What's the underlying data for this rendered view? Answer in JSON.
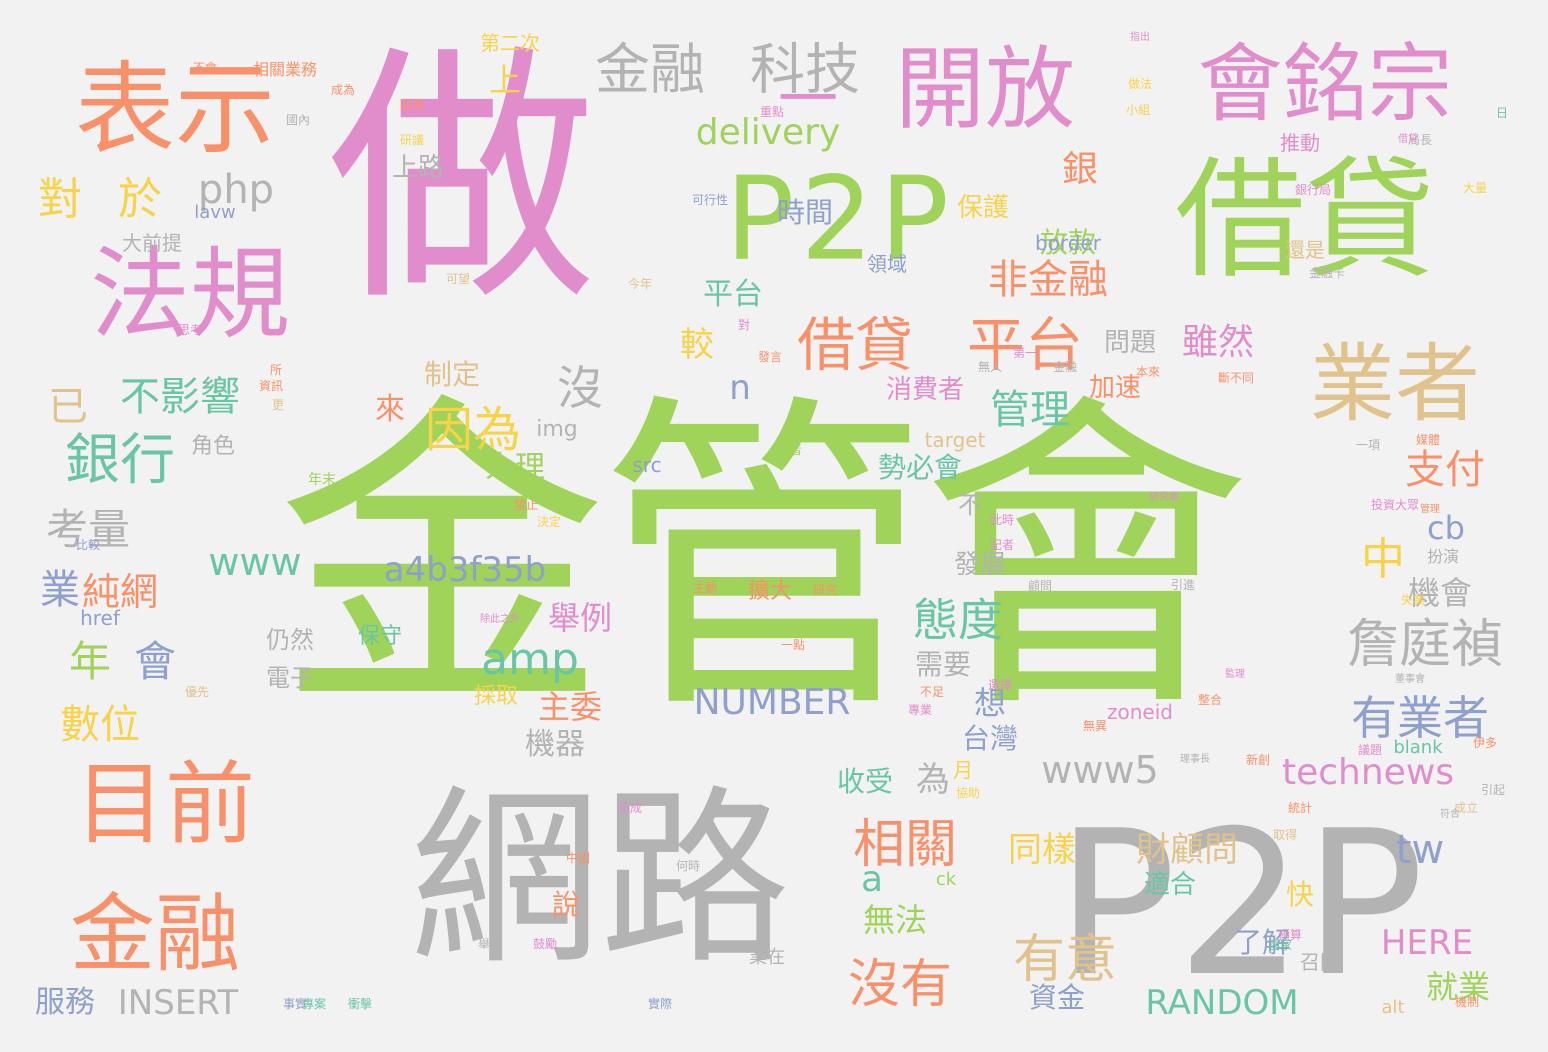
{
  "palette": {
    "green": "#9fd359",
    "pink": "#e18dcb",
    "orange": "#f8916a",
    "gray": "#b3b3b3",
    "tan": "#e0c38c",
    "teal": "#69c6a4",
    "blue": "#8ea0cb",
    "yellow": "#f7d34a",
    "background": "#f2f2f2"
  },
  "words": [
    {
      "text": "金管會",
      "color": "green"
    },
    {
      "text": "做",
      "color": "pink"
    },
    {
      "text": "網路",
      "color": "gray"
    },
    {
      "text": "P2P",
      "color": "gray"
    },
    {
      "text": "P2P",
      "color": "green"
    },
    {
      "text": "借貸",
      "color": "green"
    },
    {
      "text": "表示",
      "color": "orange"
    },
    {
      "text": "法規",
      "color": "pink"
    },
    {
      "text": "開放",
      "color": "pink"
    },
    {
      "text": "會銘宗",
      "color": "pink"
    },
    {
      "text": "業者",
      "color": "tan"
    },
    {
      "text": "目前",
      "color": "orange"
    },
    {
      "text": "金融",
      "color": "orange"
    },
    {
      "text": "借貸",
      "color": "orange"
    },
    {
      "text": "平台",
      "color": "orange"
    },
    {
      "text": "金融",
      "color": "gray"
    },
    {
      "text": "科技",
      "color": "gray"
    },
    {
      "text": "一",
      "color": "pink"
    },
    {
      "text": "delivery",
      "color": "green"
    },
    {
      "text": "對",
      "color": "yellow"
    },
    {
      "text": "於",
      "color": "yellow"
    },
    {
      "text": "php",
      "color": "gray"
    },
    {
      "text": "銀行",
      "color": "teal"
    },
    {
      "text": "不影響",
      "color": "teal"
    },
    {
      "text": "已",
      "color": "tan"
    },
    {
      "text": "因為",
      "color": "yellow"
    },
    {
      "text": "沒",
      "color": "gray"
    },
    {
      "text": "非金融",
      "color": "orange"
    },
    {
      "text": "雖然",
      "color": "pink"
    },
    {
      "text": "管理",
      "color": "teal"
    },
    {
      "text": "詹庭禎",
      "color": "gray"
    },
    {
      "text": "有業者",
      "color": "blue"
    },
    {
      "text": "支付",
      "color": "orange"
    },
    {
      "text": "態度",
      "color": "teal"
    },
    {
      "text": "amp",
      "color": "teal"
    },
    {
      "text": "a4b3f35b",
      "color": "blue"
    },
    {
      "text": "www",
      "color": "teal"
    },
    {
      "text": "考量",
      "color": "gray"
    },
    {
      "text": "業",
      "color": "blue"
    },
    {
      "text": "純網",
      "color": "orange"
    },
    {
      "text": "年",
      "color": "green"
    },
    {
      "text": "會",
      "color": "blue"
    },
    {
      "text": "數位",
      "color": "yellow"
    },
    {
      "text": "相關",
      "color": "orange"
    },
    {
      "text": "有意",
      "color": "tan"
    },
    {
      "text": "沒有",
      "color": "orange"
    },
    {
      "text": "www5",
      "color": "gray"
    },
    {
      "text": "technews",
      "color": "pink"
    },
    {
      "text": "NUMBER",
      "color": "blue"
    },
    {
      "text": "RANDOM",
      "color": "teal"
    },
    {
      "text": "INSERT",
      "color": "gray"
    },
    {
      "text": "HERE",
      "color": "pink"
    },
    {
      "text": "tw",
      "color": "blue"
    },
    {
      "text": "cb",
      "color": "blue"
    },
    {
      "text": "中",
      "color": "yellow"
    },
    {
      "text": "機會",
      "color": "gray"
    },
    {
      "text": "同樣",
      "color": "yellow"
    },
    {
      "text": "財顧問",
      "color": "tan"
    },
    {
      "text": "舉例",
      "color": "pink"
    },
    {
      "text": "主委",
      "color": "orange"
    },
    {
      "text": "機器",
      "color": "gray"
    },
    {
      "text": "無法",
      "color": "green"
    },
    {
      "text": "收受",
      "color": "teal"
    },
    {
      "text": "台灣",
      "color": "blue"
    },
    {
      "text": "想",
      "color": "blue"
    },
    {
      "text": "需要",
      "color": "gray"
    },
    {
      "text": "為",
      "color": "gray"
    },
    {
      "text": "人理",
      "color": "green"
    },
    {
      "text": "來",
      "color": "orange"
    },
    {
      "text": "時間",
      "color": "blue"
    },
    {
      "text": "平台",
      "color": "teal"
    },
    {
      "text": "放款",
      "color": "green"
    },
    {
      "text": "較",
      "color": "yellow"
    },
    {
      "text": "銀",
      "color": "orange"
    },
    {
      "text": "上",
      "color": "yellow"
    },
    {
      "text": "上路",
      "color": "gray"
    },
    {
      "text": "保護",
      "color": "yellow"
    },
    {
      "text": "勢必會",
      "color": "teal"
    },
    {
      "text": "發展",
      "color": "gray"
    },
    {
      "text": "問題",
      "color": "gray"
    },
    {
      "text": "消費者",
      "color": "pink"
    },
    {
      "text": "加速",
      "color": "orange"
    },
    {
      "text": "制定",
      "color": "tan"
    },
    {
      "text": "角色",
      "color": "gray"
    },
    {
      "text": "img",
      "color": "gray"
    },
    {
      "text": "src",
      "color": "blue"
    },
    {
      "text": "n",
      "color": "blue"
    },
    {
      "text": "a",
      "color": "teal"
    },
    {
      "text": "服務",
      "color": "blue"
    },
    {
      "text": "就業",
      "color": "green"
    },
    {
      "text": "資金",
      "color": "blue"
    },
    {
      "text": "了解",
      "color": "blue"
    },
    {
      "text": "快",
      "color": "yellow"
    },
    {
      "text": "說",
      "color": "orange"
    },
    {
      "text": "適合",
      "color": "teal"
    },
    {
      "text": "電子",
      "color": "gray"
    },
    {
      "text": "仍然",
      "color": "gray"
    },
    {
      "text": "保守",
      "color": "teal"
    },
    {
      "text": "採取",
      "color": "yellow"
    },
    {
      "text": "擴大",
      "color": "orange"
    },
    {
      "text": "border",
      "color": "blue"
    },
    {
      "text": "target",
      "color": "tan"
    },
    {
      "text": "zoneid",
      "color": "pink"
    },
    {
      "text": "blank",
      "color": "teal"
    },
    {
      "text": "href",
      "color": "blue"
    },
    {
      "text": "alt",
      "color": "tan"
    },
    {
      "text": "ck",
      "color": "green"
    },
    {
      "text": "lavw",
      "color": "blue"
    },
    {
      "text": "大前提",
      "color": "gray"
    },
    {
      "text": "領域",
      "color": "blue"
    },
    {
      "text": "還是",
      "color": "tan"
    },
    {
      "text": "召開",
      "color": "gray"
    },
    {
      "text": "推動",
      "color": "pink"
    },
    {
      "text": "第二次",
      "color": "yellow"
    },
    {
      "text": "相關業務",
      "color": "orange"
    },
    {
      "text": "扮演",
      "color": "gray"
    },
    {
      "text": "不",
      "color": "gray"
    },
    {
      "text": "月",
      "color": "yellow"
    },
    {
      "text": "業在",
      "color": "gray"
    },
    {
      "text": "可行性",
      "color": "blue"
    },
    {
      "text": "年末",
      "color": "green"
    },
    {
      "text": "主動",
      "color": "orange"
    },
    {
      "text": "研究",
      "color": "orange"
    },
    {
      "text": "指出",
      "color": "pink"
    },
    {
      "text": "因為",
      "color": "orange"
    },
    {
      "text": "小組",
      "color": "yellow"
    },
    {
      "text": "局長",
      "color": "gray"
    },
    {
      "text": "大量",
      "color": "yellow"
    },
    {
      "text": "銀行局",
      "color": "pink"
    },
    {
      "text": "金融卡",
      "color": "gray"
    },
    {
      "text": "媒體",
      "color": "orange"
    },
    {
      "text": "投資大眾",
      "color": "pink"
    },
    {
      "text": "失業",
      "color": "yellow"
    },
    {
      "text": "伊多",
      "color": "orange"
    },
    {
      "text": "引起",
      "color": "gray"
    },
    {
      "text": "成立",
      "color": "tan"
    },
    {
      "text": "顧問",
      "color": "gray"
    },
    {
      "text": "符合",
      "color": "gray"
    },
    {
      "text": "預算",
      "color": "pink"
    },
    {
      "text": "管理",
      "color": "orange"
    },
    {
      "text": "舉辦",
      "color": "gray"
    },
    {
      "text": "實際",
      "color": "blue"
    },
    {
      "text": "專案",
      "color": "teal"
    },
    {
      "text": "事實",
      "color": "blue"
    },
    {
      "text": "衝擊",
      "color": "teal"
    },
    {
      "text": "不會",
      "color": "orange"
    },
    {
      "text": "日",
      "color": "teal"
    },
    {
      "text": "可望",
      "color": "tan"
    },
    {
      "text": "今年",
      "color": "tan"
    },
    {
      "text": "思考",
      "color": "pink"
    },
    {
      "text": "資訊",
      "color": "orange"
    },
    {
      "text": "更",
      "color": "tan"
    },
    {
      "text": "成為",
      "color": "orange"
    },
    {
      "text": "對",
      "color": "pink"
    },
    {
      "text": "發言",
      "color": "orange"
    },
    {
      "text": "研議",
      "color": "yellow"
    },
    {
      "text": "第一",
      "color": "pink"
    },
    {
      "text": "重點",
      "color": "pink"
    },
    {
      "text": "做法",
      "color": "yellow"
    },
    {
      "text": "借貸",
      "color": "pink"
    },
    {
      "text": "金融",
      "color": "gray"
    },
    {
      "text": "業者",
      "color": "green"
    },
    {
      "text": "除此之外",
      "color": "pink"
    },
    {
      "text": "監理",
      "color": "pink"
    },
    {
      "text": "不足",
      "color": "orange"
    },
    {
      "text": "選擇",
      "color": "pink"
    },
    {
      "text": "專業",
      "color": "pink"
    },
    {
      "text": "無異",
      "color": "orange"
    },
    {
      "text": "造成",
      "color": "pink"
    },
    {
      "text": "中國",
      "color": "orange"
    },
    {
      "text": "何時",
      "color": "gray"
    },
    {
      "text": "此時",
      "color": "pink"
    },
    {
      "text": "記者",
      "color": "pink"
    },
    {
      "text": "決定",
      "color": "yellow"
    },
    {
      "text": "禁止",
      "color": "orange"
    },
    {
      "text": "鼓勵",
      "color": "pink"
    },
    {
      "text": "國內",
      "color": "gray"
    },
    {
      "text": "優先",
      "color": "tan"
    },
    {
      "text": "無人",
      "color": "gray"
    },
    {
      "text": "本來",
      "color": "orange"
    },
    {
      "text": "斷不同",
      "color": "orange"
    },
    {
      "text": "研究員",
      "color": "pink"
    },
    {
      "text": "理事長",
      "color": "gray"
    },
    {
      "text": "董事會",
      "color": "gray"
    },
    {
      "text": "一項",
      "color": "gray"
    },
    {
      "text": "所",
      "color": "orange"
    },
    {
      "text": "比較",
      "color": "blue"
    },
    {
      "text": "新創",
      "color": "orange"
    },
    {
      "text": "議題",
      "color": "pink"
    },
    {
      "text": "協助",
      "color": "yellow"
    },
    {
      "text": "統計",
      "color": "orange"
    },
    {
      "text": "機制",
      "color": "orange"
    },
    {
      "text": "取得",
      "color": "tan"
    },
    {
      "text": "一點",
      "color": "orange"
    },
    {
      "text": "引進",
      "color": "gray"
    },
    {
      "text": "整合",
      "color": "orange"
    },
    {
      "text": "國家",
      "color": "teal"
    },
    {
      "text": "變化",
      "color": "orange"
    },
    {
      "text": "商品",
      "color": "orange"
    },
    {
      "text": "會員",
      "color": "orange"
    },
    {
      "text": "產業",
      "color": "pink"
    },
    {
      "text": "風險",
      "color": "blue"
    },
    {
      "text": "資料",
      "color": "pink"
    },
    {
      "text": "新聞",
      "color": "pink"
    }
  ]
}
